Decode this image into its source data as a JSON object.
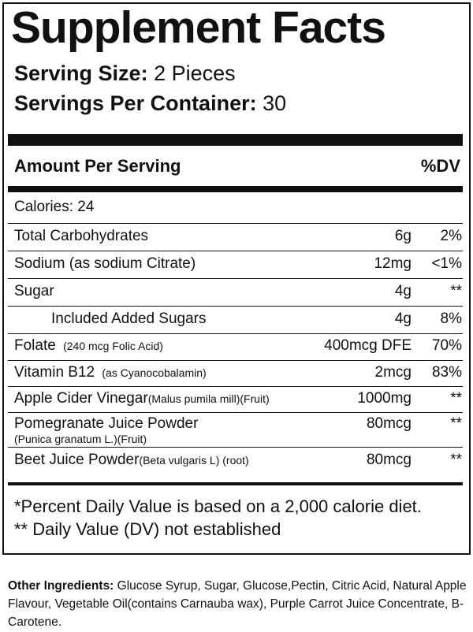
{
  "title": "Supplement Facts",
  "serving_size": {
    "label": "Serving Size:",
    "value": "2 Pieces"
  },
  "servings_per_container": {
    "label": "Servings Per Container:",
    "value": "30"
  },
  "header": {
    "amount": "Amount Per Serving",
    "dv": "%DV"
  },
  "calories": "Calories: 24",
  "rows": [
    {
      "name": "Total Carbohydrates",
      "amount": "6g",
      "dv": "2%"
    },
    {
      "name": "Sodium (as sodium Citrate)",
      "amount": "12mg",
      "dv": "<1%"
    },
    {
      "name": "Sugar",
      "amount": "4g",
      "dv": "**"
    },
    {
      "name": "Included Added Sugars",
      "amount": "4g",
      "dv": "8%"
    },
    {
      "name": "Folate",
      "note": "(240 mcg Folic Acid)",
      "amount": "400mcg DFE",
      "dv": "70%"
    },
    {
      "name": "Vitamin B12",
      "note": "(as Cyanocobalamin)",
      "amount": "2mcg",
      "dv": "83%"
    },
    {
      "name": "Apple Cider Vinegar",
      "note": "(Malus pumila mill)(Fruit)",
      "amount": "1000mg",
      "dv": "**"
    },
    {
      "name": "Pomegranate Juice Powder",
      "note": "(Punica granatum L.)(Fruit)",
      "amount": "80mcg",
      "dv": "**"
    },
    {
      "name": "Beet Juice Powder",
      "note": "(Beta vulgaris L) (root)",
      "amount": "80mcg",
      "dv": "**"
    }
  ],
  "footnotes": [
    "*Percent Daily Value is based on a 2,000 calorie diet.",
    "** Daily Value (DV) not established"
  ],
  "other_ingredients": {
    "label": "Other Ingredients:",
    "text": "Glucose Syrup, Sugar, Glucose,Pectin, Citric Acid,  Natural Apple Flavour, Vegetable Oil(contains Carnauba wax), Purple Carrot Juice Concentrate, B-Carotene."
  }
}
